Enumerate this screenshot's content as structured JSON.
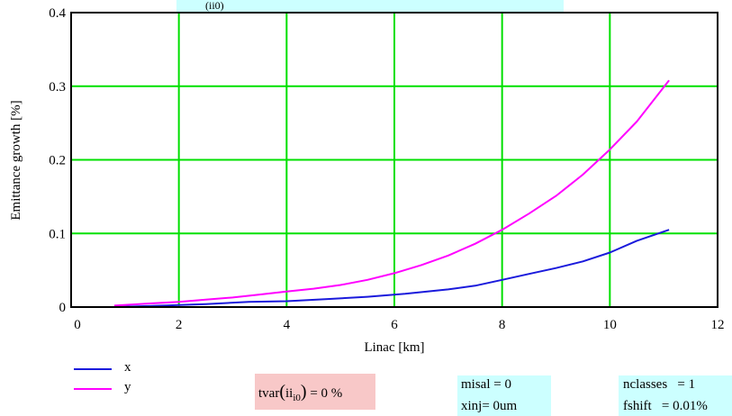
{
  "chart_data": {
    "type": "line",
    "xlabel": "Linac [km]",
    "ylabel": "Emittance growth [%]",
    "xlim": [
      0,
      12
    ],
    "ylim": [
      0,
      0.4
    ],
    "xticks": [
      "0",
      "2",
      "4",
      "6",
      "8",
      "10",
      "12"
    ],
    "yticks": [
      "0",
      "0.1",
      "0.2",
      "0.3",
      "0.4"
    ],
    "grid": true,
    "legend_position": "bottom-left",
    "series": [
      {
        "name": "x",
        "color": "#1a1adc",
        "x": [
          0.8,
          1.7,
          2.5,
          3.3,
          4.0,
          4.8,
          5.5,
          6.2,
          7.0,
          7.5,
          8.0,
          8.5,
          9.0,
          9.5,
          10.0,
          10.5,
          11.1
        ],
        "y": [
          0.0,
          0.002,
          0.004,
          0.007,
          0.008,
          0.011,
          0.014,
          0.018,
          0.024,
          0.029,
          0.037,
          0.045,
          0.053,
          0.062,
          0.074,
          0.09,
          0.105
        ]
      },
      {
        "name": "y",
        "color": "#ff00ff",
        "x": [
          0.8,
          1.5,
          2.0,
          2.5,
          3.0,
          3.5,
          4.0,
          4.5,
          5.0,
          5.5,
          6.0,
          6.5,
          7.0,
          7.5,
          8.0,
          8.5,
          9.0,
          9.5,
          10.0,
          10.5,
          11.1
        ],
        "y": [
          0.002,
          0.005,
          0.007,
          0.01,
          0.013,
          0.017,
          0.021,
          0.025,
          0.03,
          0.037,
          0.046,
          0.057,
          0.07,
          0.086,
          0.105,
          0.127,
          0.151,
          0.18,
          0.214,
          0.252,
          0.308
        ]
      }
    ]
  },
  "params": {
    "tvar_label": "tvar",
    "tvar_index": "ii",
    "tvar_sub": "i0",
    "tvar_value": "= 0 %",
    "top_sub": "(ii0)",
    "misal": "misal = 0",
    "xinj": "xinj= 0um",
    "nclasses": "nclasses   = 1",
    "fshift": "fshift   = 0.01%"
  }
}
